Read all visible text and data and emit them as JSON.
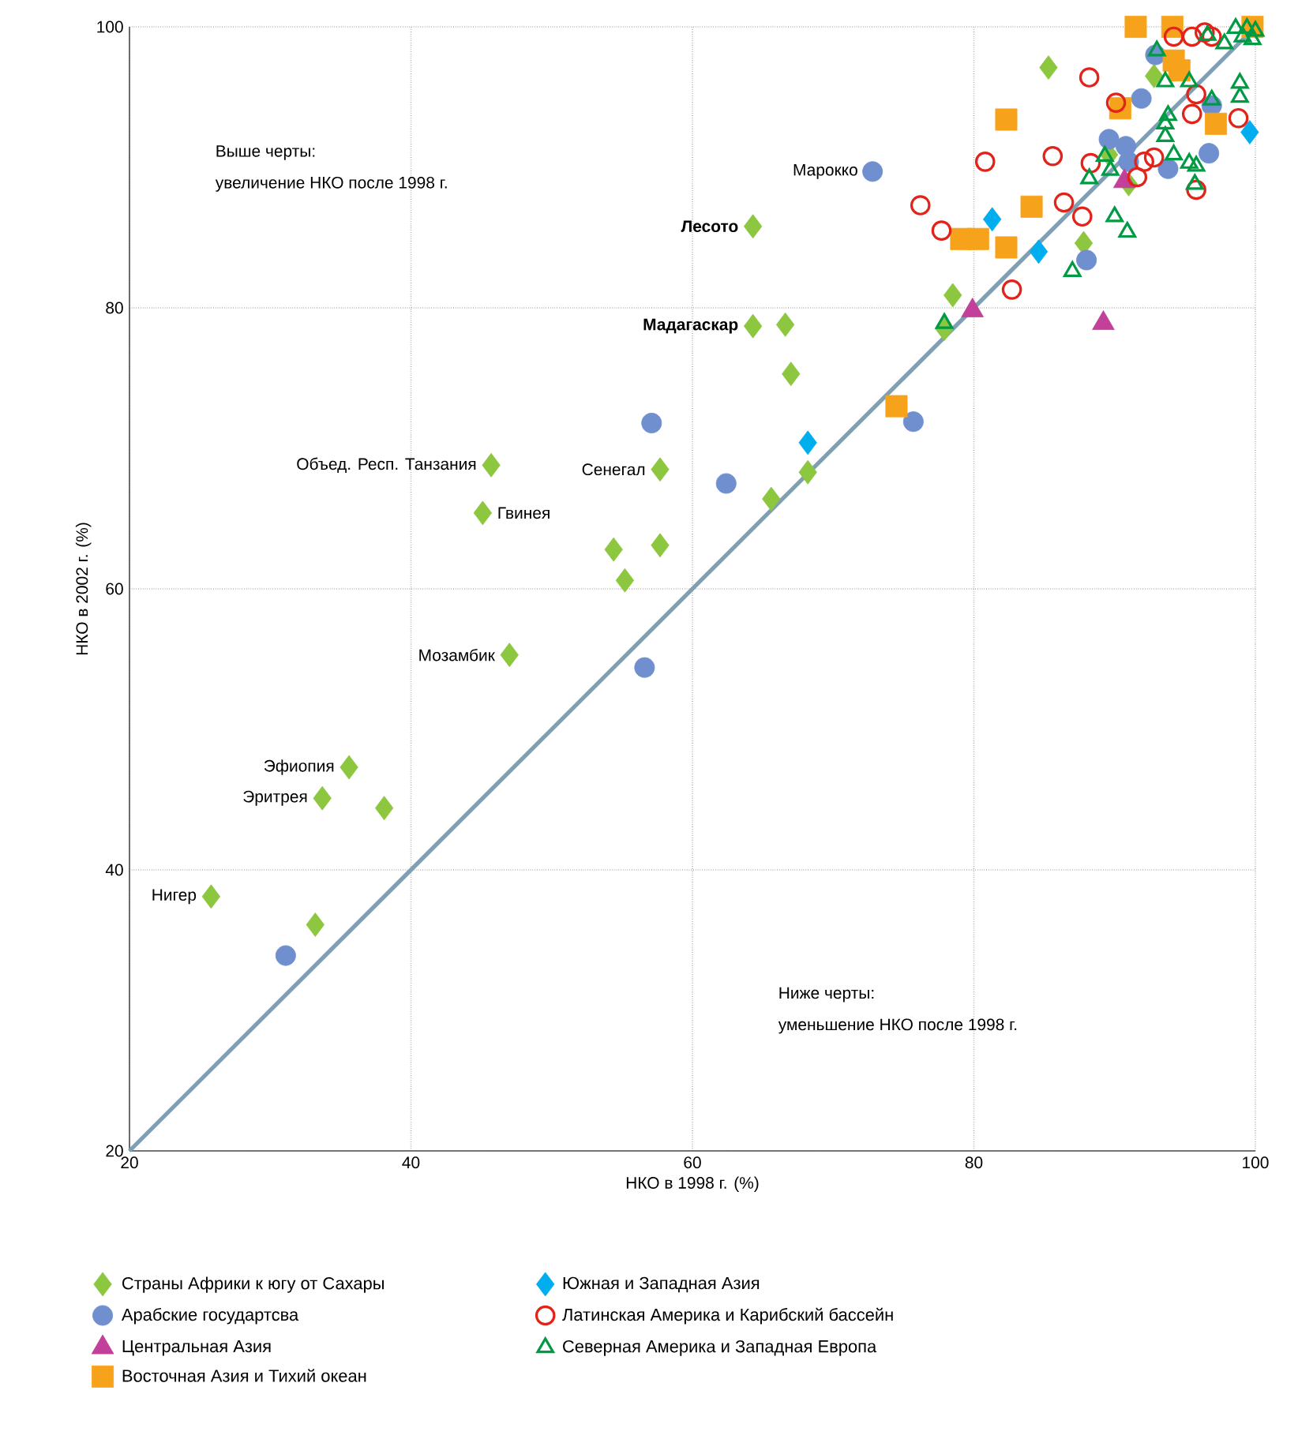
{
  "chart_data": {
    "type": "scatter",
    "xlabel": "НКО в 1998 г. (%)",
    "ylabel": "НКО в  2002 г. (%)",
    "xlim": [
      20,
      100
    ],
    "ylim": [
      20,
      100
    ],
    "xticks": [
      20,
      40,
      60,
      80,
      100
    ],
    "yticks": [
      20,
      40,
      60,
      80,
      100
    ],
    "grid": true,
    "legend": "bottom",
    "series": [
      {
        "name": "Страны Африки к югу от Сахары",
        "color": "#8dc63f",
        "marker": "diamond",
        "x": [
          64.3,
          64.3,
          66.6,
          67.0,
          57.7,
          45.7,
          45.1,
          54.4,
          57.7,
          55.2,
          47.0,
          35.6,
          33.7,
          38.1,
          25.8,
          33.2,
          65.6,
          68.2,
          78.5,
          77.9,
          85.3,
          87.8,
          92.8,
          89.6,
          91.0
        ],
        "values": [
          85.8,
          78.7,
          78.8,
          75.3,
          68.5,
          68.8,
          65.4,
          62.8,
          63.1,
          60.6,
          55.3,
          47.3,
          45.1,
          44.4,
          38.1,
          36.1,
          66.4,
          68.3,
          80.9,
          78.5,
          97.1,
          84.6,
          96.5,
          90.9,
          88.8
        ]
      },
      {
        "name": "Арабские государтсва",
        "color": "#6f8fcf",
        "marker": "circle",
        "x": [
          72.8,
          57.1,
          62.4,
          56.6,
          31.1,
          75.7,
          88.0,
          91.9,
          92.9,
          89.6,
          90.8,
          91.0,
          93.8,
          96.7,
          96.9
        ],
        "values": [
          89.7,
          71.8,
          67.5,
          54.4,
          33.9,
          71.9,
          83.4,
          94.9,
          98.0,
          92.0,
          91.5,
          90.4,
          89.9,
          91.0,
          94.4
        ]
      },
      {
        "name": "Центральная Азия",
        "color": "#c2409a",
        "marker": "triangle",
        "x": [
          79.9,
          89.2,
          90.7
        ],
        "values": [
          79.8,
          78.9,
          89.0
        ]
      },
      {
        "name": "Восточная Азия и Тихий океан",
        "color": "#f7a21b",
        "marker": "square",
        "x": [
          74.5,
          91.5,
          94.1,
          79.1,
          80.3,
          82.3,
          84.1,
          82.3,
          90.4,
          94.2,
          94.6,
          97.2,
          99.8
        ],
        "values": [
          73.0,
          100,
          100,
          84.9,
          84.9,
          84.3,
          87.2,
          93.4,
          94.2,
          97.6,
          96.9,
          93.1,
          100
        ]
      },
      {
        "name": "Южная и Западная Азия",
        "color": "#00aeef",
        "marker": "diamond",
        "x": [
          68.2,
          81.3,
          84.6,
          99.6
        ],
        "values": [
          70.4,
          86.3,
          84.0,
          92.5
        ]
      },
      {
        "name": "Латинская Америка и Карибский бассейн",
        "color": "#e2231a",
        "marker": "circle",
        "x": [
          88.2,
          80.8,
          85.6,
          76.2,
          77.7,
          86.4,
          87.7,
          82.7,
          90.1,
          88.3,
          91.6,
          92.1,
          92.8,
          95.5,
          95.8,
          95.8,
          98.8,
          94.2,
          95.5,
          96.4,
          96.9
        ],
        "values": [
          96.4,
          90.4,
          90.8,
          87.3,
          85.5,
          87.5,
          86.5,
          81.3,
          94.6,
          90.3,
          89.3,
          90.4,
          90.7,
          93.8,
          95.2,
          88.4,
          93.5,
          99.3,
          99.3,
          99.6,
          99.3
        ]
      },
      {
        "name": "Северная Америка и Западная Европа",
        "color": "#009a44",
        "marker": "triangle",
        "x": [
          77.9,
          87.0,
          90.0,
          90.9,
          88.2,
          89.3,
          89.7,
          93.6,
          93.6,
          93.8,
          94.2,
          95.3,
          95.8,
          95.7,
          96.9,
          93.6,
          95.3,
          93.0,
          98.9,
          98.9,
          96.6,
          97.8,
          98.6,
          99.4,
          100,
          99.1,
          99.8
        ],
        "values": [
          78.9,
          82.6,
          86.5,
          85.4,
          89.2,
          90.8,
          89.8,
          93.1,
          92.2,
          93.7,
          90.9,
          90.3,
          90.1,
          88.8,
          94.8,
          96.1,
          96.1,
          98.3,
          96.0,
          95.0,
          99.4,
          98.8,
          99.9,
          99.9,
          99.7,
          99.3,
          99.1
        ]
      },
      {
        "type": "line",
        "color": "#7f9fb3",
        "x": [
          20,
          100
        ],
        "values": [
          20,
          100
        ]
      }
    ],
    "annotations": [
      "Выше черты:",
      "увеличение НКО после 1998 г.",
      "Ниже черты:",
      "уменьшение НКО после 1998 г.",
      {
        "text": "Марокко",
        "x": 72.8,
        "y": 89.7
      },
      {
        "text": "**Лесото**",
        "x": 64.3,
        "y": 85.8
      },
      {
        "text": "**Мадагаскар**",
        "x": 64.3,
        "y": 78.7
      },
      {
        "text": "Объед. Респ. Танзания",
        "x": 45.7,
        "y": 68.8
      },
      {
        "text": "Сенегал",
        "x": 57.7,
        "y": 68.5
      },
      {
        "text": "Гвинея",
        "x": 45.1,
        "y": 65.4
      },
      {
        "text": "Мозамбик",
        "x": 47.0,
        "y": 55.3
      },
      {
        "text": "Эфиопия",
        "x": 35.6,
        "y": 47.3
      },
      {
        "text": "Эритрея",
        "x": 33.7,
        "y": 45.1
      },
      {
        "text": "Нигер",
        "x": 25.8,
        "y": 38.1
      }
    ]
  }
}
